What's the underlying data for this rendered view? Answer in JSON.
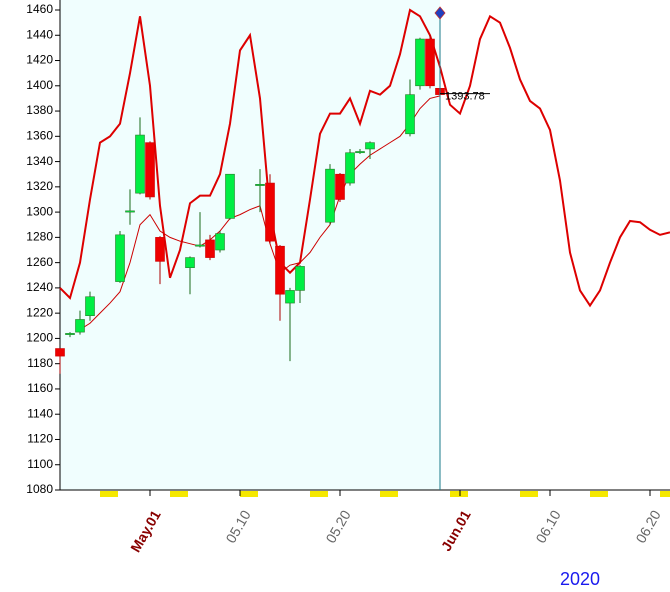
{
  "chart_data": {
    "type": "candlestick",
    "year_label": "2020",
    "xlim": [
      "04.22",
      "06.22"
    ],
    "ylim": [
      1080,
      1460
    ],
    "yticks": [
      1080,
      1100,
      1120,
      1140,
      1160,
      1180,
      1200,
      1220,
      1240,
      1260,
      1280,
      1300,
      1320,
      1340,
      1360,
      1380,
      1400,
      1420,
      1440,
      1460
    ],
    "xticks": [
      {
        "value": "05.01",
        "label": "May.01"
      },
      "05.10",
      "05.20",
      {
        "value": "06.01",
        "label": "Jun.01"
      },
      "06.10",
      "06.20"
    ],
    "candles": {
      "up_color": "#00ee44",
      "down_color": "#ee0000",
      "x": [
        "04.22",
        "04.23",
        "04.24",
        "04.25",
        "04.28",
        "04.29",
        "04.30",
        "05.01",
        "05.02",
        "05.05",
        "05.06",
        "05.07",
        "05.08",
        "05.09",
        "05.12",
        "05.13",
        "05.14",
        "05.15",
        "05.16",
        "05.19",
        "05.20",
        "05.21",
        "05.22",
        "05.23",
        "05.27",
        "05.28",
        "05.29",
        "05.30"
      ],
      "open": [
        1192,
        1203,
        1205,
        1218,
        1245,
        1300,
        1315,
        1355,
        1280,
        1256,
        1273,
        1278,
        1270,
        1295,
        1321,
        1323,
        1273,
        1228,
        1238,
        1292,
        1330,
        1323,
        1347,
        1350,
        1362,
        1400,
        1437,
        1398
      ],
      "high": [
        1192,
        1205,
        1222,
        1237,
        1285,
        1318,
        1375,
        1356,
        1281,
        1265,
        1300,
        1282,
        1285,
        1330,
        1334,
        1330,
        1274,
        1240,
        1258,
        1338,
        1331,
        1350,
        1350,
        1356,
        1405,
        1438,
        1440,
        1400
      ],
      "low": [
        1172,
        1201,
        1203,
        1214,
        1244,
        1290,
        1314,
        1310,
        1243,
        1235,
        1272,
        1262,
        1268,
        1294,
        1300,
        1275,
        1214,
        1182,
        1228,
        1290,
        1308,
        1321,
        1346,
        1342,
        1360,
        1397,
        1398,
        1390
      ],
      "close": [
        1186,
        1204,
        1215,
        1233,
        1282,
        1301,
        1361,
        1312,
        1261,
        1264,
        1274,
        1264,
        1283,
        1330,
        1322,
        1277,
        1235,
        1238,
        1257,
        1334,
        1310,
        1347,
        1348,
        1355,
        1393,
        1437,
        1400,
        1393
      ]
    },
    "x": [
      "04.22",
      "04.23",
      "04.24",
      "04.25",
      "04.26",
      "04.27",
      "04.28",
      "04.29",
      "04.30",
      "05.01",
      "05.02",
      "05.03",
      "05.04",
      "05.05",
      "05.06",
      "05.07",
      "05.08",
      "05.09",
      "05.10",
      "05.11",
      "05.12",
      "05.13",
      "05.14",
      "05.15",
      "05.16",
      "05.17",
      "05.18",
      "05.19",
      "05.20",
      "05.21",
      "05.22",
      "05.23",
      "05.24",
      "05.25",
      "05.26",
      "05.27",
      "05.28",
      "05.29",
      "05.30",
      "05.31",
      "06.01",
      "06.02",
      "06.03",
      "06.04",
      "06.05",
      "06.06",
      "06.07",
      "06.08",
      "06.09",
      "06.10",
      "06.11",
      "06.12",
      "06.13",
      "06.14",
      "06.15",
      "06.16",
      "06.17",
      "06.18",
      "06.19",
      "06.20",
      "06.21",
      "06.22"
    ],
    "series": [
      {
        "color": "#dd0000",
        "values": [
          1240,
          1232,
          1260,
          1310,
          1355,
          1360,
          1370,
          1410,
          1455,
          1400,
          1305,
          1248,
          1270,
          1307,
          1313,
          1313,
          1330,
          1370,
          1428,
          1440,
          1390,
          1300,
          1260,
          1252,
          1260,
          1310,
          1362,
          1378,
          1378,
          1390,
          1370,
          1396,
          1393,
          1400,
          1425,
          1460,
          1455,
          1440,
          1415,
          1385,
          1378,
          1400,
          1437,
          1455,
          1450,
          1430,
          1405,
          1388,
          1382,
          1365,
          1325,
          1268,
          1238,
          1226,
          1238,
          1260,
          1280,
          1293,
          1292,
          1286,
          1282,
          1284
        ]
      },
      {
        "color": "#cc0000",
        "values": [
          null,
          null,
          1207,
          1212,
          1220,
          1228,
          1237,
          1260,
          1290,
          1298,
          1285,
          1280,
          1277,
          1275,
          1273,
          1278,
          1285,
          1295,
          1298,
          1302,
          1305,
          1275,
          1252,
          1258,
          1260,
          1268,
          1280,
          1290,
          1313,
          1330,
          1338,
          1345,
          1350,
          1355,
          1360,
          1370,
          1382,
          1390,
          1392,
          null,
          null,
          null,
          null,
          null,
          null,
          null,
          null,
          null,
          null,
          null,
          null,
          null,
          null,
          null,
          null,
          null,
          null,
          null,
          null,
          null,
          null,
          null
        ]
      }
    ],
    "cursor_x": "05.30",
    "last_price": 1393.78
  }
}
